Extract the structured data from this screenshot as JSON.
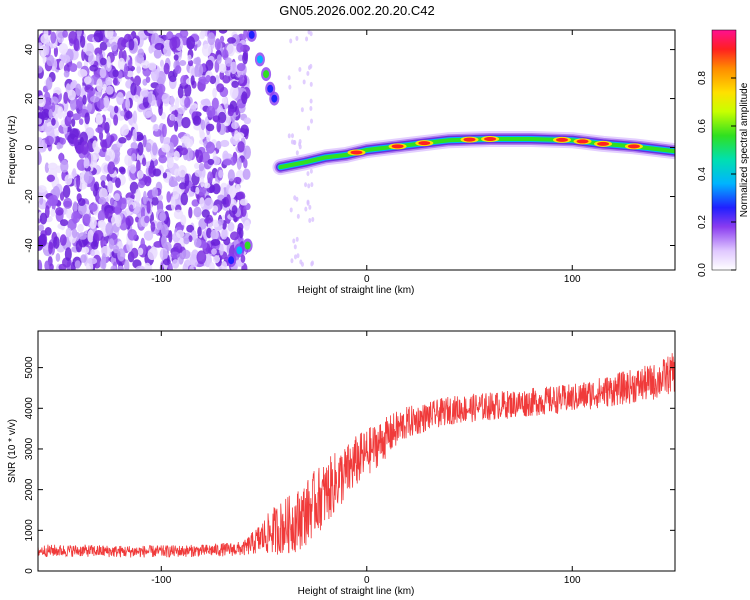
{
  "chart_data": [
    {
      "type": "heatmap",
      "title": "GN05.2026.002.20.20.C42",
      "xlabel": "Height of straight line (km)",
      "ylabel": "Frequency (Hz)",
      "xlim": [
        -160,
        150
      ],
      "ylim": [
        -50,
        48
      ],
      "xticks": [
        -100,
        0,
        100
      ],
      "yticks": [
        -40,
        -20,
        0,
        20,
        40
      ],
      "colorbar": {
        "label": "Normalized spectral amplitude",
        "range": [
          0,
          1
        ],
        "ticks": [
          0.0,
          0.2,
          0.4,
          0.6,
          0.8
        ]
      },
      "ridge": [
        {
          "x": -42,
          "y": -8
        },
        {
          "x": -30,
          "y": -6
        },
        {
          "x": -20,
          "y": -4
        },
        {
          "x": -10,
          "y": -3
        },
        {
          "x": 0,
          "y": -1
        },
        {
          "x": 10,
          "y": 0
        },
        {
          "x": 25,
          "y": 1.5
        },
        {
          "x": 40,
          "y": 3
        },
        {
          "x": 60,
          "y": 3.5
        },
        {
          "x": 80,
          "y": 3.5
        },
        {
          "x": 100,
          "y": 3
        },
        {
          "x": 115,
          "y": 1.5
        },
        {
          "x": 130,
          "y": 0.5
        },
        {
          "x": 150,
          "y": -1.5
        }
      ],
      "noise_region_x": [
        -160,
        -58
      ],
      "transition_branch": [
        {
          "x": -56,
          "y": 46
        },
        {
          "x": -52,
          "y": 36
        },
        {
          "x": -49,
          "y": 30
        },
        {
          "x": -47,
          "y": 24
        },
        {
          "x": -45,
          "y": 20
        }
      ],
      "lower_branch": [
        {
          "x": -66,
          "y": -46
        },
        {
          "x": -62,
          "y": -42
        },
        {
          "x": -58,
          "y": -40
        }
      ]
    },
    {
      "type": "line",
      "xlabel": "Height of straight line (km)",
      "ylabel": "SNR (10 * v/v)",
      "xlim": [
        -160,
        150
      ],
      "ylim": [
        0,
        5900
      ],
      "xticks": [
        -100,
        0,
        100
      ],
      "yticks": [
        0,
        1000,
        2000,
        3000,
        4000,
        5000
      ],
      "series_color": "#f03a3a",
      "series": [
        {
          "name": "SNR",
          "x": [
            -160,
            -140,
            -120,
            -100,
            -80,
            -60,
            -55,
            -50,
            -45,
            -40,
            -35,
            -30,
            -25,
            -20,
            -15,
            -10,
            -5,
            0,
            5,
            10,
            15,
            20,
            30,
            40,
            50,
            60,
            80,
            100,
            120,
            140,
            150
          ],
          "y": [
            500,
            500,
            480,
            480,
            500,
            550,
            700,
            850,
            1000,
            1100,
            1200,
            1400,
            1700,
            1900,
            2200,
            2400,
            2700,
            2900,
            3100,
            3300,
            3500,
            3650,
            3800,
            3950,
            4000,
            4050,
            4150,
            4250,
            4450,
            4650,
            4900
          ],
          "noise_amplitude": [
            150,
            150,
            150,
            150,
            150,
            180,
            300,
            450,
            600,
            700,
            750,
            800,
            800,
            800,
            750,
            700,
            650,
            600,
            550,
            500,
            450,
            400,
            350,
            350,
            350,
            350,
            350,
            350,
            400,
            450,
            500
          ]
        }
      ]
    }
  ],
  "colors": {
    "background": "#ffffff",
    "axes": "#000000",
    "series": "#f03a3a"
  }
}
